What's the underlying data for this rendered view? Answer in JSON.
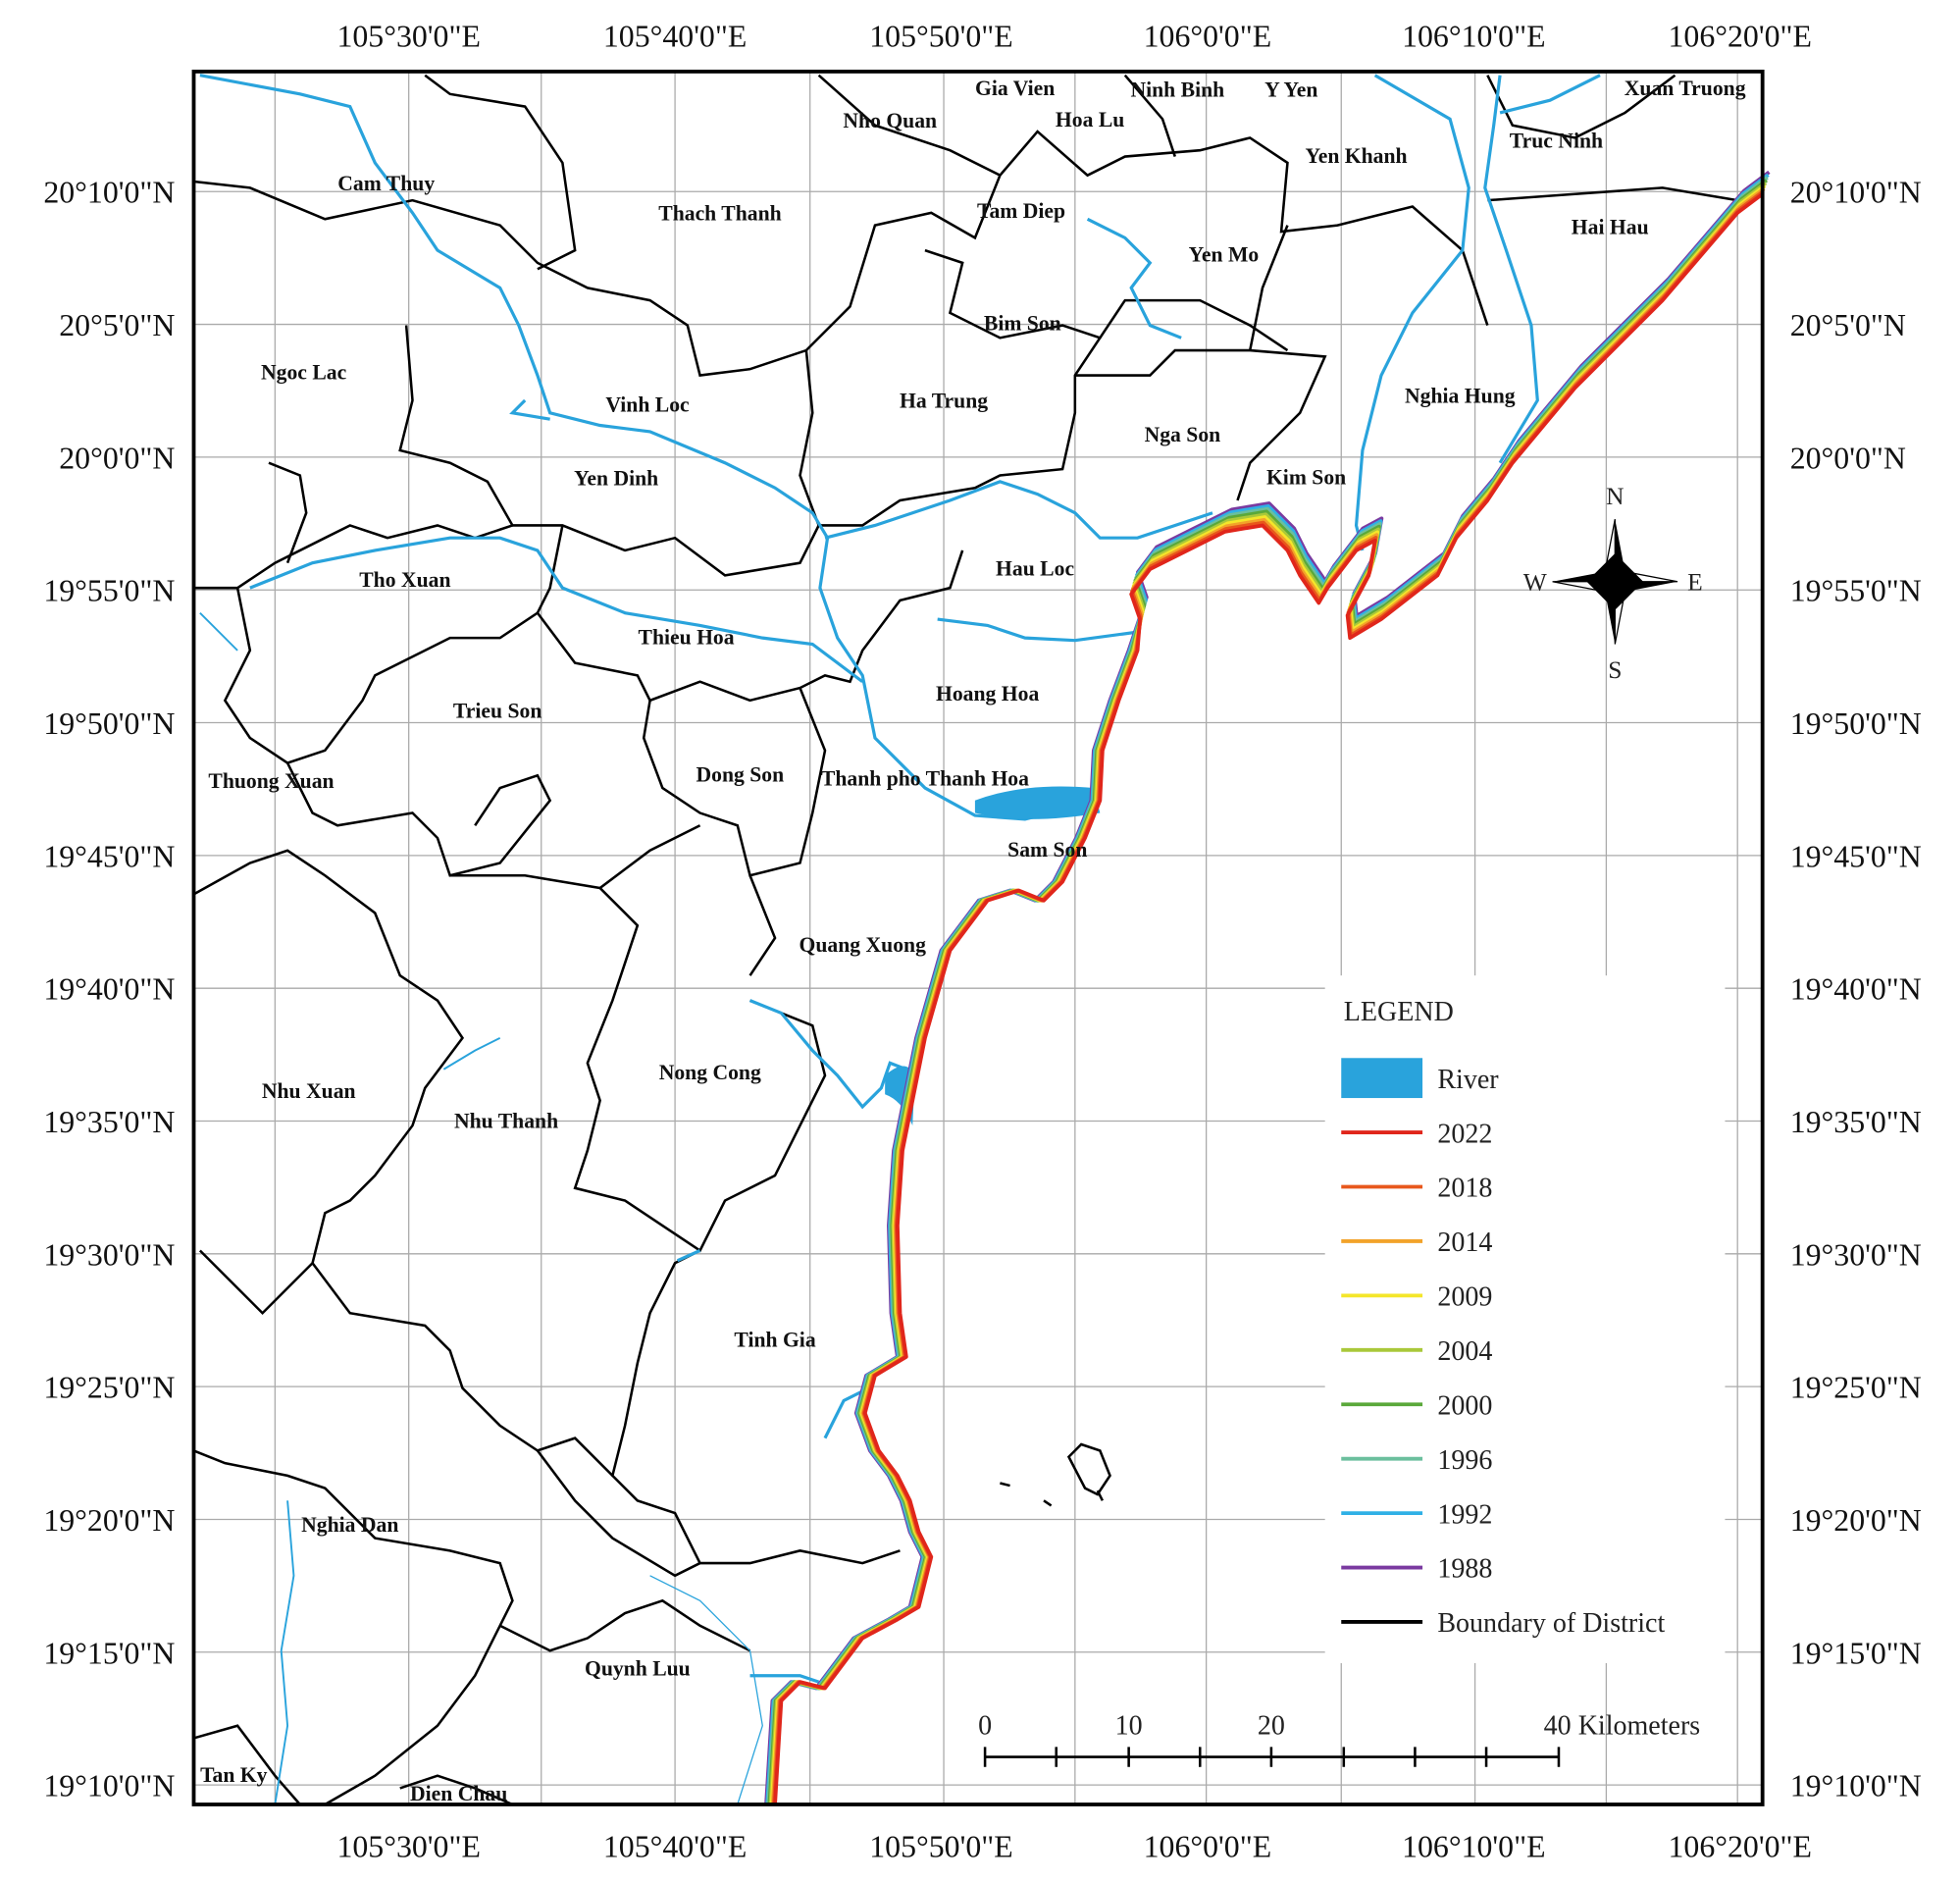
{
  "map": {
    "top_labels": [
      "105°30'0\"E",
      "105°40'0\"E",
      "105°50'0\"E",
      "106°0'0\"E",
      "106°10'0\"E",
      "106°20'0\"E"
    ],
    "bottom_labels": [
      "105°30'0\"E",
      "105°40'0\"E",
      "105°50'0\"E",
      "106°0'0\"E",
      "106°10'0\"E",
      "106°20'0\"E"
    ],
    "left_labels": [
      "20°10'0\"N",
      "20°5'0\"N",
      "20°0'0\"N",
      "19°55'0\"N",
      "19°50'0\"N",
      "19°45'0\"N",
      "19°40'0\"N",
      "19°35'0\"N",
      "19°30'0\"N",
      "19°25'0\"N",
      "19°20'0\"N",
      "19°15'0\"N",
      "19°10'0\"N"
    ],
    "right_labels": [
      "20°10'0\"N",
      "20°5'0\"N",
      "20°0'0\"N",
      "19°55'0\"N",
      "19°50'0\"N",
      "19°45'0\"N",
      "19°40'0\"N",
      "19°35'0\"N",
      "19°30'0\"N",
      "19°25'0\"N",
      "19°20'0\"N",
      "19°15'0\"N",
      "19°10'0\"N"
    ],
    "districts": [
      "Nho Quan",
      "Gia Vien",
      "Ninh Binh",
      "Y Yen",
      "Hoa Lu",
      "Xuan Truong",
      "Truc Ninh",
      "Yen Khanh",
      "Cam Thuy",
      "Thach Thanh",
      "Tam Diep",
      "Hai Hau",
      "Yen Mo",
      "Bim Son",
      "Ngoc Lac",
      "Nghia Hung",
      "Vinh Loc",
      "Ha Trung",
      "Nga Son",
      "Kim Son",
      "Yen Dinh",
      "Hau Loc",
      "Tho Xuan",
      "Thieu Hoa",
      "Hoang Hoa",
      "Trieu Son",
      "Thuong Xuan",
      "Dong Son",
      "Thanh pho Thanh Hoa",
      "Sam Son",
      "Quang Xuong",
      "Nong Cong",
      "Nhu Xuan",
      "Nhu Thanh",
      "Tinh Gia",
      "Nghia Dan",
      "Quynh Luu",
      "Tan Ky",
      "Dien Chau"
    ],
    "legend": {
      "title": "LEGEND",
      "items": [
        {
          "label": "River",
          "color": "#29a3dc"
        },
        {
          "label": "2022",
          "color": "#e0261b"
        },
        {
          "label": "2018",
          "color": "#e8581c"
        },
        {
          "label": "2014",
          "color": "#f2a32a"
        },
        {
          "label": "2009",
          "color": "#f4e62a"
        },
        {
          "label": "2004",
          "color": "#a9c83a"
        },
        {
          "label": "2000",
          "color": "#5aa83a"
        },
        {
          "label": "1996",
          "color": "#6bbf9d"
        },
        {
          "label": "1992",
          "color": "#2fb0e6"
        },
        {
          "label": "1988",
          "color": "#7a3aa0"
        },
        {
          "label": "Boundary of District",
          "color": "#000000"
        }
      ]
    },
    "scale_bar": [
      "0",
      "10",
      "20",
      "40 Kilometers"
    ],
    "compass": [
      "N",
      "E",
      "S",
      "W"
    ]
  }
}
